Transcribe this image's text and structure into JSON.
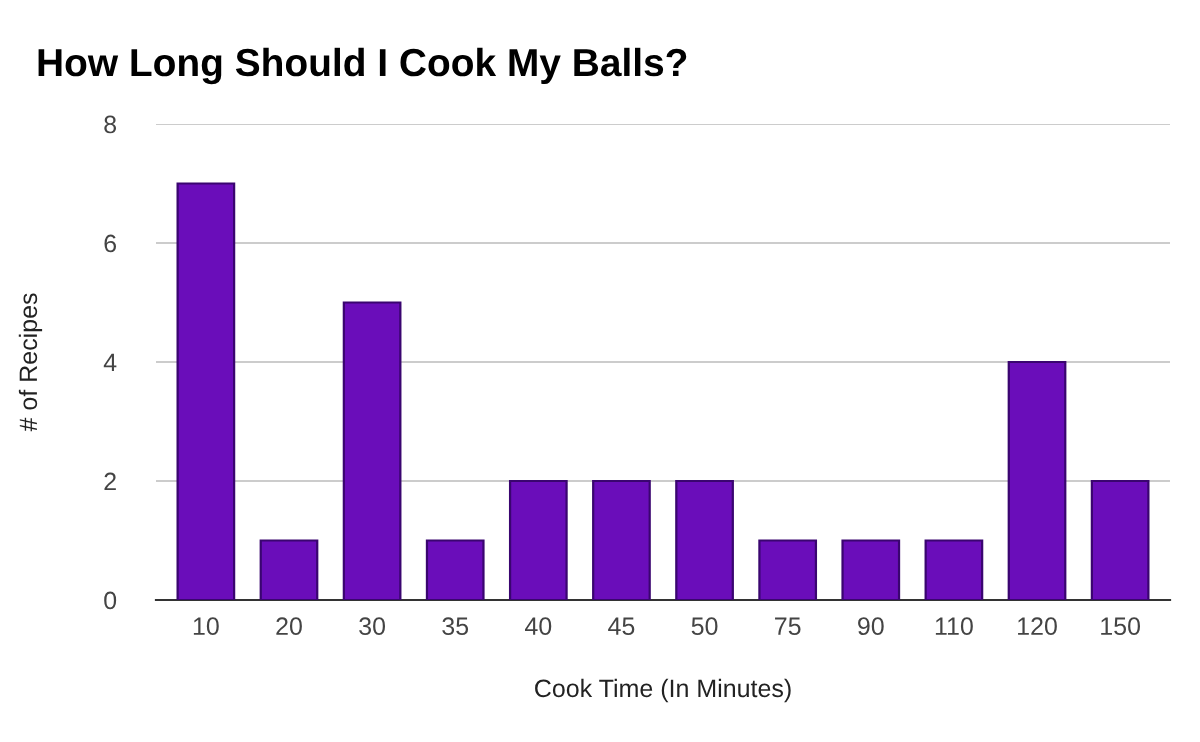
{
  "chart_data": {
    "type": "bar",
    "title": "How Long Should I Cook My Balls?",
    "xlabel": "Cook Time (In Minutes)",
    "ylabel": "# of Recipes",
    "categories": [
      "10",
      "20",
      "30",
      "35",
      "40",
      "45",
      "50",
      "75",
      "90",
      "110",
      "120",
      "150"
    ],
    "values": [
      7,
      1,
      5,
      1,
      2,
      2,
      2,
      1,
      1,
      1,
      4,
      2
    ],
    "color": "#6a0dba",
    "ylim": [
      0,
      8
    ],
    "yticks": [
      0,
      2,
      4,
      6,
      8
    ],
    "grid": "y",
    "legend": false
  }
}
